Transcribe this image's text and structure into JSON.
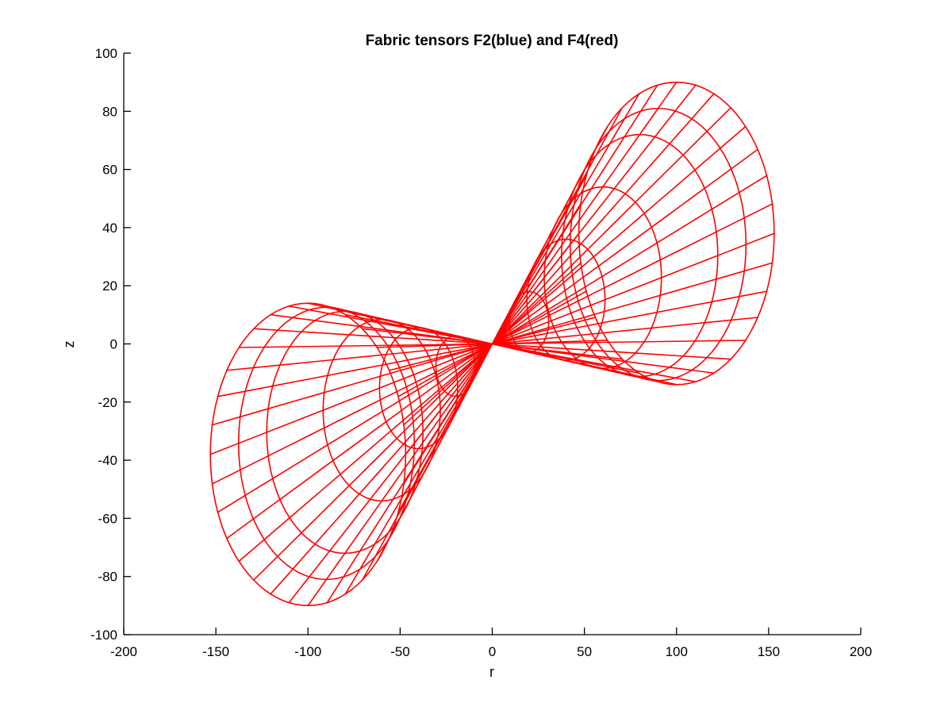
{
  "chart_data": {
    "type": "line",
    "title": "Fabric tensors F2(blue) and F4(red)",
    "xlabel": "r",
    "ylabel": "z",
    "xlim": [
      -200,
      200
    ],
    "ylim": [
      -100,
      100
    ],
    "xticks": [
      -200,
      -150,
      -100,
      -50,
      0,
      50,
      100,
      150,
      200
    ],
    "yticks": [
      -100,
      -80,
      -60,
      -40,
      -20,
      0,
      20,
      40,
      60,
      80,
      100
    ],
    "grid": false,
    "legend": "none",
    "series": [
      {
        "color": "#ff0000",
        "description": "Wireframe projection of a double-cone fabric surface meeting at the origin, one lobe toward (-100, -40), the other toward (100, 40)",
        "surface": {
          "lobe_center_r": 100,
          "lobe_center_z": 40,
          "lobe_semi_axis_r": 53,
          "lobe_semi_axis_z": 52,
          "lobe_offset_r": 0,
          "lobe_offset_z": -2,
          "rings": [
            0.2,
            0.4,
            0.6,
            0.8,
            0.9,
            1.0
          ],
          "radial_lines": 32,
          "max_r": 153,
          "max_z": 92
        }
      }
    ]
  }
}
